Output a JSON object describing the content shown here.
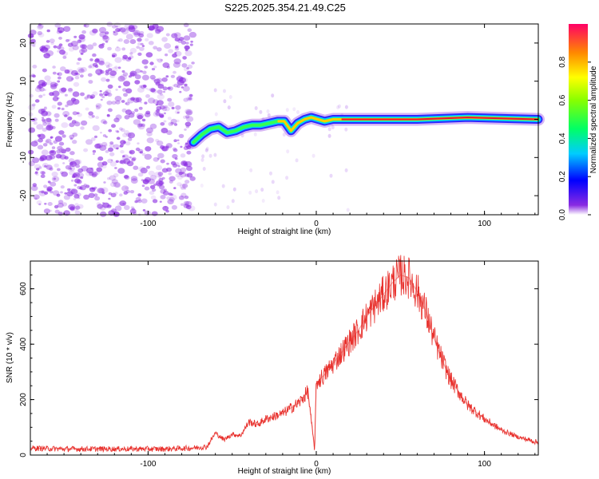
{
  "title": "S225.2025.354.21.49.C25",
  "colors": {
    "scatter": "#8a2be2",
    "snr_line": "#e8302c",
    "axis": "#000000"
  },
  "chart_data": [
    {
      "type": "heatmap",
      "xlabel": "Height of straight line (km)",
      "ylabel": "Frequency (Hz)",
      "xlim": [
        -170,
        132
      ],
      "ylim": [
        -25,
        25
      ],
      "xticks": [
        -100,
        0,
        100
      ],
      "xtick_labels": [
        "-100",
        "0",
        "100"
      ],
      "yticks": [
        -20,
        -10,
        0,
        10,
        20
      ],
      "ytick_labels": [
        "-20",
        "-10",
        "0",
        "10",
        "20"
      ],
      "noise_region_x": [
        -170,
        -73
      ],
      "signal_track": {
        "x": [
          -73,
          -68,
          -63,
          -58,
          -53,
          -48,
          -43,
          -38,
          -33,
          -28,
          -23,
          -19,
          -15,
          -11,
          -7,
          -3,
          1,
          5,
          10,
          15,
          30,
          60,
          90,
          132
        ],
        "y": [
          -6,
          -4,
          -2.5,
          -2,
          -3.5,
          -3,
          -2,
          -1.5,
          -1.5,
          -1,
          -0.5,
          -0.5,
          -3,
          -1,
          0,
          0.5,
          0,
          -0.5,
          0,
          0,
          0,
          0,
          0.5,
          0
        ]
      },
      "colorbar": {
        "label": "Normalized spectral amplitude",
        "ticks": [
          0.0,
          0.2,
          0.4,
          0.6,
          0.8
        ],
        "tick_labels": [
          "0.0",
          "0.2",
          "0.4",
          "0.6",
          "0.8"
        ],
        "range": [
          0,
          1
        ]
      }
    },
    {
      "type": "line",
      "xlabel": "Height of straight line (km)",
      "ylabel": "SNR (10 * v/v)",
      "xlim": [
        -170,
        132
      ],
      "ylim": [
        0,
        700
      ],
      "xticks": [
        -100,
        0,
        100
      ],
      "xtick_labels": [
        "-100",
        "0",
        "100"
      ],
      "yticks": [
        0,
        200,
        400,
        600
      ],
      "ytick_labels": [
        "0",
        "200",
        "400",
        "600"
      ],
      "series": [
        {
          "x": [
            -170,
            -150,
            -130,
            -110,
            -90,
            -75,
            -65,
            -60,
            -55,
            -50,
            -45,
            -40,
            -35,
            -30,
            -25,
            -20,
            -15,
            -10,
            -5,
            -1,
            0,
            5,
            10,
            15,
            20,
            25,
            30,
            35,
            40,
            45,
            50,
            55,
            60,
            65,
            70,
            75,
            80,
            90,
            100,
            110,
            120,
            132
          ],
          "y": [
            25,
            22,
            22,
            22,
            22,
            25,
            30,
            80,
            55,
            75,
            70,
            120,
            110,
            130,
            140,
            150,
            170,
            190,
            230,
            20,
            260,
            290,
            330,
            370,
            410,
            450,
            500,
            540,
            580,
            620,
            650,
            640,
            590,
            520,
            420,
            340,
            270,
            180,
            130,
            90,
            65,
            45
          ]
        }
      ]
    }
  ]
}
